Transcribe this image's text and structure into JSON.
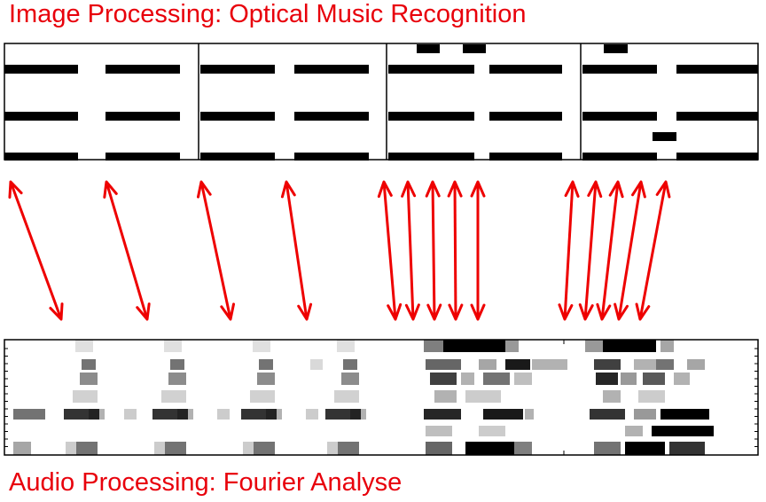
{
  "top_title": "Image Processing: Optical Music Recognition",
  "bottom_title": "Audio Processing: Fourier Analyse",
  "colors": {
    "title": "#e8000b",
    "arrow": "#ee0000",
    "ink": "#000000"
  },
  "score": {
    "measures": 4,
    "staff_lines": 3
  },
  "arrow_groups": [
    {
      "measure": 1,
      "arrows": 2
    },
    {
      "measure": 2,
      "arrows": 2
    },
    {
      "measure": 3,
      "arrows": 5
    },
    {
      "measure": 4,
      "arrows": 5
    }
  ]
}
